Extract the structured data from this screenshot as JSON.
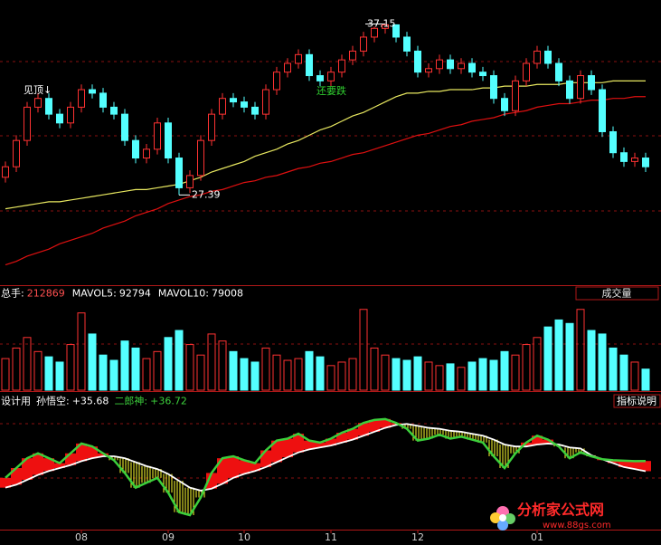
{
  "chart_data": [
    {
      "type": "candlestick",
      "open": [
        28.4,
        29.0,
        30.5,
        32.4,
        32.9,
        32.0,
        31.5,
        32.4,
        33.4,
        33.2,
        32.4,
        32.0,
        30.5,
        29.5,
        30.0,
        31.5,
        29.5,
        27.8,
        28.5,
        30.5,
        32.0,
        32.9,
        32.7,
        32.4,
        32.0,
        33.4,
        34.4,
        34.9,
        35.4,
        34.2,
        33.9,
        34.4,
        35.1,
        35.6,
        36.4,
        36.9,
        37.1,
        36.4,
        35.6,
        34.4,
        34.6,
        35.1,
        34.6,
        34.9,
        34.4,
        34.2,
        32.9,
        32.2,
        33.9,
        34.9,
        35.6,
        34.9,
        33.9,
        32.9,
        34.2,
        33.4,
        31.0,
        29.8,
        29.3,
        29.5
      ],
      "high": [
        29.3,
        30.8,
        32.7,
        33.2,
        33.2,
        32.3,
        32.7,
        33.7,
        33.7,
        33.5,
        32.7,
        32.3,
        30.8,
        30.3,
        31.8,
        31.8,
        29.8,
        28.8,
        30.8,
        32.3,
        33.2,
        33.2,
        33.0,
        32.7,
        33.7,
        34.7,
        35.2,
        35.7,
        35.7,
        34.5,
        34.7,
        35.4,
        35.9,
        36.7,
        37.0,
        37.15,
        37.1,
        36.7,
        35.9,
        34.9,
        35.4,
        35.4,
        35.2,
        35.2,
        34.7,
        34.5,
        33.2,
        34.2,
        35.2,
        35.9,
        35.9,
        35.2,
        34.2,
        34.5,
        34.5,
        33.7,
        31.3,
        30.1,
        29.8,
        29.8
      ],
      "low": [
        28.1,
        28.7,
        30.2,
        32.1,
        31.7,
        31.2,
        31.2,
        32.1,
        32.9,
        32.1,
        31.7,
        30.2,
        29.2,
        29.2,
        29.7,
        29.2,
        27.39,
        27.5,
        28.2,
        30.2,
        31.7,
        32.4,
        32.1,
        31.7,
        31.7,
        33.1,
        34.1,
        34.6,
        33.9,
        33.6,
        33.6,
        34.1,
        34.8,
        35.3,
        36.1,
        36.6,
        36.1,
        35.3,
        34.1,
        34.1,
        34.3,
        34.3,
        34.3,
        34.1,
        33.9,
        32.6,
        31.9,
        31.9,
        33.6,
        34.6,
        34.6,
        33.6,
        32.6,
        32.6,
        33.1,
        30.7,
        29.5,
        29.0,
        29.0,
        28.7
      ],
      "close": [
        29.0,
        30.5,
        32.4,
        32.9,
        32.0,
        31.5,
        32.4,
        33.4,
        33.2,
        32.4,
        32.0,
        30.5,
        29.5,
        30.0,
        31.5,
        29.5,
        27.8,
        28.5,
        30.5,
        32.0,
        32.9,
        32.7,
        32.4,
        32.0,
        33.4,
        34.4,
        34.9,
        35.4,
        34.2,
        33.9,
        34.4,
        35.1,
        35.6,
        36.4,
        36.9,
        37.1,
        36.4,
        35.6,
        34.4,
        34.6,
        35.1,
        34.6,
        34.9,
        34.4,
        34.2,
        32.9,
        32.2,
        33.9,
        34.9,
        35.6,
        34.9,
        33.9,
        32.9,
        34.2,
        33.4,
        31.0,
        29.8,
        29.3,
        29.5,
        29.0
      ],
      "up_color": "#ff3232",
      "down_color": "#54ffff",
      "series": [
        {
          "color": "#e01010",
          "values": [
            23.4,
            23.6,
            23.9,
            24.1,
            24.3,
            24.6,
            24.8,
            25.0,
            25.2,
            25.5,
            25.7,
            25.9,
            26.2,
            26.4,
            26.6,
            26.9,
            27.1,
            27.3,
            27.4,
            27.6,
            27.7,
            27.9,
            28.1,
            28.2,
            28.4,
            28.5,
            28.7,
            28.9,
            29.0,
            29.2,
            29.3,
            29.5,
            29.7,
            29.8,
            30.0,
            30.2,
            30.4,
            30.6,
            30.8,
            30.9,
            31.1,
            31.3,
            31.4,
            31.6,
            31.7,
            31.8,
            32.0,
            32.1,
            32.2,
            32.4,
            32.5,
            32.6,
            32.6,
            32.7,
            32.8,
            32.8,
            32.9,
            32.9,
            33.0,
            33.0
          ]
        },
        {
          "color": "#e8e860",
          "values": [
            26.6,
            26.7,
            26.8,
            26.9,
            27.0,
            27.0,
            27.1,
            27.2,
            27.3,
            27.4,
            27.5,
            27.6,
            27.7,
            27.7,
            27.8,
            27.9,
            28.0,
            28.2,
            28.4,
            28.7,
            28.9,
            29.1,
            29.3,
            29.6,
            29.8,
            30.0,
            30.3,
            30.5,
            30.8,
            31.1,
            31.3,
            31.6,
            31.9,
            32.1,
            32.4,
            32.7,
            33.0,
            33.2,
            33.2,
            33.3,
            33.3,
            33.4,
            33.4,
            33.4,
            33.5,
            33.5,
            33.6,
            33.6,
            33.6,
            33.7,
            33.7,
            33.7,
            33.8,
            33.8,
            33.8,
            33.8,
            33.9,
            33.9,
            33.9,
            33.9
          ]
        }
      ],
      "annotations": [
        "见顶↓",
        "还要跌"
      ],
      "ylim": [
        22.5,
        38
      ]
    },
    {
      "type": "bar",
      "header": [
        {
          "name": "总手:",
          "value": 212869,
          "color": "#ff5050"
        },
        {
          "name": "MAVOL5:",
          "value": 92794,
          "color": "#ffffff"
        },
        {
          "name": "MAVOL10:",
          "value": 79008,
          "color": "#ffffff"
        }
      ],
      "button": "成交量",
      "values": [
        90000,
        120000,
        150000,
        110000,
        95000,
        80000,
        130000,
        220000,
        160000,
        100000,
        85000,
        140000,
        120000,
        90000,
        110000,
        150000,
        170000,
        130000,
        100000,
        160000,
        140000,
        110000,
        90000,
        80000,
        120000,
        100000,
        85000,
        90000,
        110000,
        95000,
        70000,
        80000,
        90000,
        230000,
        120000,
        100000,
        90000,
        85000,
        95000,
        80000,
        70000,
        75000,
        65000,
        80000,
        90000,
        85000,
        110000,
        100000,
        130000,
        150000,
        180000,
        200000,
        190000,
        230000,
        170000,
        160000,
        120000,
        100000,
        80000,
        60000
      ],
      "up_color": "#ff3232",
      "down_color": "#54ffff",
      "ylim": [
        0,
        250000
      ]
    },
    {
      "type": "band",
      "title": "设计用",
      "button": "指标说明",
      "categories": [
        null,
        null,
        null,
        null,
        null,
        null,
        null,
        "08",
        null,
        null,
        null,
        null,
        null,
        null,
        null,
        "09",
        null,
        null,
        null,
        null,
        null,
        null,
        "10",
        null,
        null,
        null,
        null,
        null,
        null,
        null,
        "11",
        null,
        null,
        null,
        null,
        null,
        null,
        null,
        "12",
        null,
        null,
        null,
        null,
        null,
        null,
        null,
        null,
        null,
        null,
        "01",
        null,
        null,
        null,
        null,
        null,
        null,
        null,
        null,
        null,
        null
      ],
      "series": [
        {
          "name": "孙悟空:",
          "color": "#ffffff",
          "value_label": "+35.68",
          "values": [
            34.0,
            34.3,
            34.8,
            35.3,
            35.7,
            36.0,
            36.3,
            36.7,
            37.0,
            37.2,
            37.2,
            37.0,
            36.6,
            36.2,
            35.9,
            35.4,
            34.7,
            34.0,
            33.7,
            33.9,
            34.4,
            35.0,
            35.4,
            35.7,
            36.1,
            36.6,
            37.1,
            37.6,
            37.9,
            38.1,
            38.3,
            38.6,
            38.9,
            39.3,
            39.7,
            40.1,
            40.4,
            40.5,
            40.3,
            40.1,
            40.0,
            39.8,
            39.7,
            39.5,
            39.3,
            38.9,
            38.4,
            38.2,
            38.2,
            38.4,
            38.5,
            38.4,
            38.1,
            38.0,
            37.3,
            36.9,
            36.5,
            36.1,
            35.9,
            35.68
          ]
        },
        {
          "name": "二郎神:",
          "color": "#3ccf3c",
          "value_label": "+36.72",
          "values": [
            35.0,
            36.0,
            37.0,
            37.5,
            37.0,
            36.5,
            37.5,
            38.5,
            38.2,
            37.5,
            36.8,
            35.5,
            34.0,
            34.5,
            35.0,
            33.5,
            31.5,
            31.2,
            33.0,
            35.5,
            37.0,
            37.2,
            36.8,
            36.5,
            37.8,
            38.8,
            39.0,
            39.5,
            38.8,
            38.6,
            39.0,
            39.6,
            40.0,
            40.6,
            40.9,
            41.0,
            40.6,
            40.0,
            38.8,
            39.0,
            39.4,
            39.0,
            39.2,
            38.9,
            38.6,
            37.2,
            36.0,
            37.5,
            38.6,
            39.3,
            38.9,
            38.2,
            37.0,
            37.6,
            37.2,
            36.9,
            36.8,
            36.75,
            36.7,
            36.72
          ]
        }
      ],
      "above_fill": "#ee1010",
      "below_fill": "#ffff30",
      "ylim": [
        30,
        42
      ]
    }
  ],
  "watermark": {
    "title": "分析家公式网",
    "url": "www.88gs.com"
  }
}
